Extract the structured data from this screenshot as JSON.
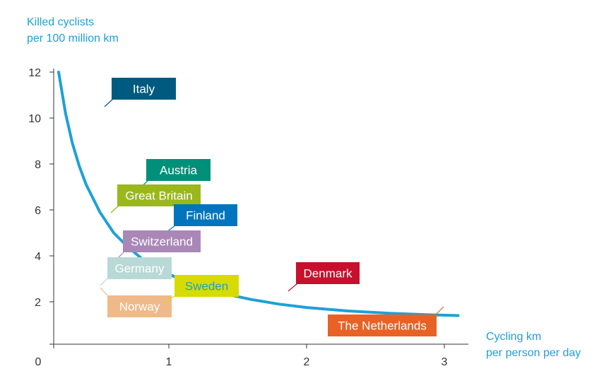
{
  "chart_data": {
    "type": "line",
    "title": "",
    "ylabel": [
      "Killed cyclists",
      "per 100 million km"
    ],
    "xlabel": [
      "Cycling km",
      "per person per day"
    ],
    "xlim": [
      0,
      3.1
    ],
    "ylim": [
      0,
      12
    ],
    "x_ticks": [
      0,
      1,
      2,
      3
    ],
    "y_ticks": [
      2,
      4,
      6,
      8,
      10,
      12
    ],
    "grid": false,
    "curve_color": "#1ea0d8",
    "series": [
      {
        "x": [
          0.2,
          0.25,
          0.3,
          0.35,
          0.4,
          0.5,
          0.6,
          0.7,
          0.8,
          0.9,
          1.0,
          1.2,
          1.4,
          1.6,
          1.8,
          2.0,
          2.3,
          2.6,
          2.9,
          3.1
        ],
        "y": [
          12.0,
          10.2,
          8.9,
          7.9,
          7.1,
          5.9,
          5.0,
          4.4,
          3.9,
          3.5,
          3.2,
          2.7,
          2.35,
          2.1,
          1.9,
          1.75,
          1.6,
          1.5,
          1.43,
          1.4
        ]
      }
    ],
    "countries": [
      {
        "name": "Italy",
        "x": 0.5,
        "y": 10.4,
        "color": "#005a80",
        "text_color": "#ffffff"
      },
      {
        "name": "Austria",
        "x": 0.65,
        "y": 6.7,
        "color": "#00907a",
        "text_color": "#ffffff"
      },
      {
        "name": "Great Britain",
        "x": 0.45,
        "y": 5.8,
        "color": "#9ab71c",
        "text_color": "#ffffff"
      },
      {
        "name": "Finland",
        "x": 0.85,
        "y": 4.9,
        "color": "#0075bd",
        "text_color": "#ffffff"
      },
      {
        "name": "Switzerland",
        "x": 0.45,
        "y": 3.8,
        "color": "#a987b7",
        "text_color": "#ffffff"
      },
      {
        "name": "Germany",
        "x": 0.35,
        "y": 2.6,
        "color": "#b8d9d6",
        "text_color": "#ffffff"
      },
      {
        "name": "Norway",
        "x": 0.35,
        "y": 2.4,
        "color": "#f0b989",
        "text_color": "#ffffff"
      },
      {
        "name": "Sweden",
        "x": 0.9,
        "y": 1.9,
        "color": "#d8db00",
        "text_color": "#1ea0d8"
      },
      {
        "name": "Denmark",
        "x": 1.9,
        "y": 2.2,
        "color": "#c8102e",
        "text_color": "#ffffff"
      },
      {
        "name": "The Netherlands",
        "x": 2.95,
        "y": 1.6,
        "color": "#e86225",
        "text_color": "#ffffff"
      }
    ]
  }
}
